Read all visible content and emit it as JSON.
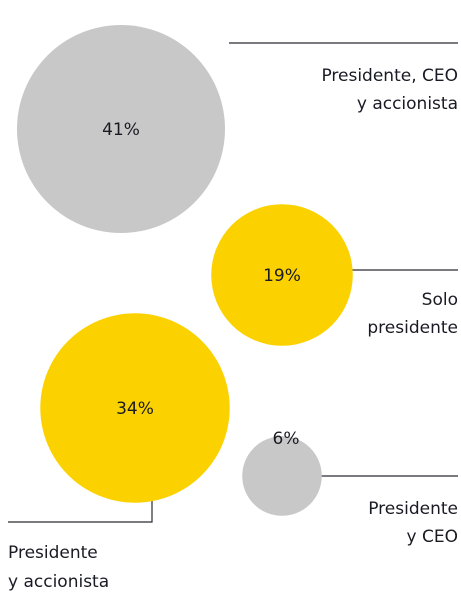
{
  "chart_data": {
    "type": "bubble",
    "unit": "%",
    "colors": {
      "gray": "#c8c8c8",
      "yellow": "#fbd200",
      "line": "#2a2a33",
      "text": "#1a1a24"
    },
    "bubbles": [
      {
        "value": 41,
        "value_label": "41%",
        "label_lines": [
          "Presidente, CEO",
          "y accionista"
        ],
        "color": "gray"
      },
      {
        "value": 19,
        "value_label": "19%",
        "label_lines": [
          "Solo",
          "presidente"
        ],
        "color": "yellow"
      },
      {
        "value": 34,
        "value_label": "34%",
        "label_lines": [
          "Presidente",
          "y accionista"
        ],
        "color": "yellow"
      },
      {
        "value": 6,
        "value_label": "6%",
        "label_lines": [
          "Presidente",
          "y CEO"
        ],
        "color": "gray"
      }
    ]
  }
}
